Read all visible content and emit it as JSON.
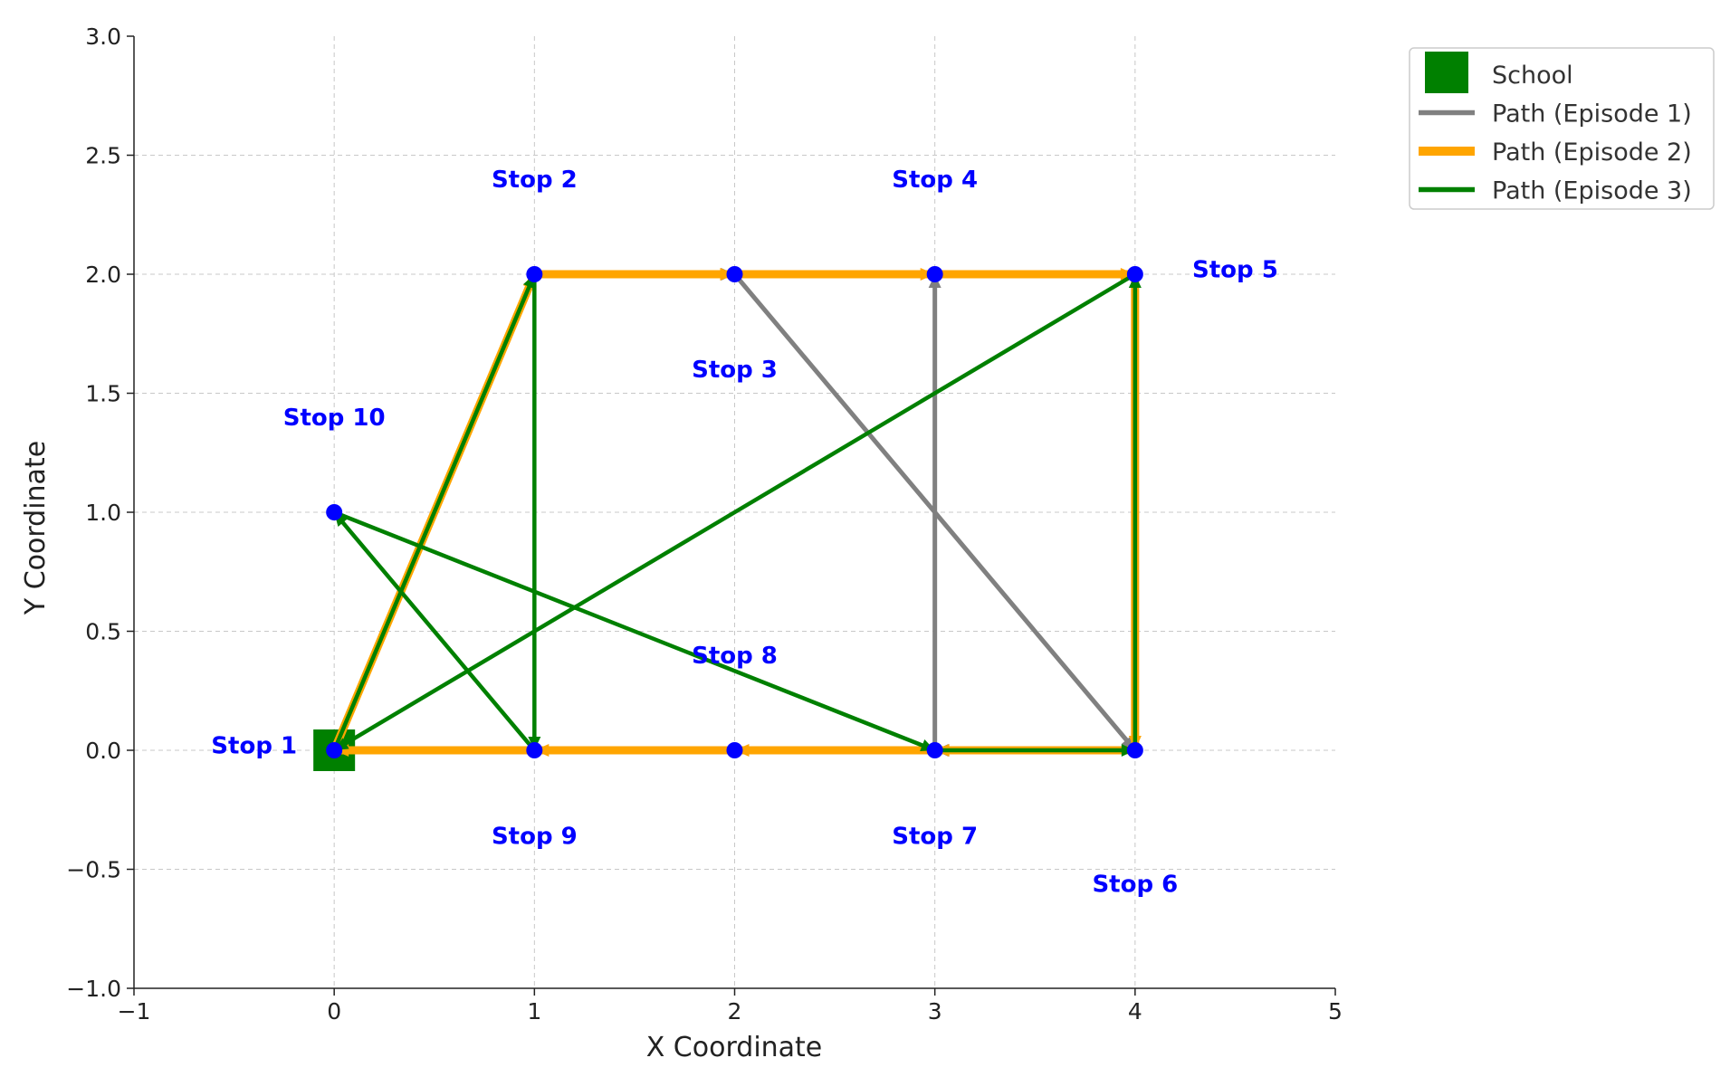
{
  "chart_data": {
    "type": "line",
    "xlabel": "X Coordinate",
    "ylabel": "Y Coordinate",
    "xlim": [
      -1,
      5
    ],
    "ylim": [
      -1.0,
      3.0
    ],
    "xticks": [
      -1,
      0,
      1,
      2,
      3,
      4,
      5
    ],
    "xtick_labels": [
      "−1",
      "0",
      "1",
      "2",
      "3",
      "4",
      "5"
    ],
    "yticks": [
      -1.0,
      -0.5,
      0.0,
      0.5,
      1.0,
      1.5,
      2.0,
      2.5,
      3.0
    ],
    "ytick_labels": [
      "−1.0",
      "−0.5",
      "0.0",
      "0.5",
      "1.0",
      "1.5",
      "2.0",
      "2.5",
      "3.0"
    ],
    "grid": true,
    "legend_position": "outside top-right",
    "school": {
      "name": "School",
      "x": 0,
      "y": 0,
      "color": "#008000"
    },
    "stops": [
      {
        "name": "Stop 1",
        "x": 0,
        "y": 0,
        "label_x": -0.4,
        "label_y": 0.02
      },
      {
        "name": "Stop 2",
        "x": 1,
        "y": 2,
        "label_x": 1.0,
        "label_y": 2.4
      },
      {
        "name": "Stop 3",
        "x": 2,
        "y": 2,
        "label_x": 2.0,
        "label_y": 1.6
      },
      {
        "name": "Stop 4",
        "x": 3,
        "y": 2,
        "label_x": 3.0,
        "label_y": 2.4
      },
      {
        "name": "Stop 5",
        "x": 4,
        "y": 2,
        "label_x": 4.5,
        "label_y": 2.02
      },
      {
        "name": "Stop 6",
        "x": 4,
        "y": 0,
        "label_x": 4.0,
        "label_y": -0.56
      },
      {
        "name": "Stop 7",
        "x": 3,
        "y": 0,
        "label_x": 3.0,
        "label_y": -0.36
      },
      {
        "name": "Stop 8",
        "x": 2,
        "y": 0,
        "label_x": 2.0,
        "label_y": 0.4
      },
      {
        "name": "Stop 9",
        "x": 1,
        "y": 0,
        "label_x": 1.0,
        "label_y": -0.36
      },
      {
        "name": "Stop 10",
        "x": 0,
        "y": 1,
        "label_x": 0.0,
        "label_y": 1.4
      }
    ],
    "stop_marker_color": "#0000ff",
    "stop_label_color": "#0000ff",
    "series": [
      {
        "name": "Path (Episode 1)",
        "color": "#808080",
        "points": [
          [
            0,
            0
          ],
          [
            1,
            2
          ],
          [
            2,
            2
          ],
          [
            4,
            0
          ],
          [
            3,
            0
          ],
          [
            3,
            2
          ]
        ]
      },
      {
        "name": "Path (Episode 2)",
        "color": "#ffa500",
        "points": [
          [
            0,
            0
          ],
          [
            1,
            2
          ],
          [
            2,
            2
          ],
          [
            3,
            2
          ],
          [
            4,
            2
          ],
          [
            4,
            0
          ],
          [
            3,
            0
          ],
          [
            2,
            0
          ],
          [
            1,
            0
          ],
          [
            0,
            0
          ]
        ]
      },
      {
        "name": "Path (Episode 3)",
        "color": "#008000",
        "points": [
          [
            0,
            0
          ],
          [
            1,
            2
          ],
          [
            1,
            0
          ],
          [
            0,
            1
          ],
          [
            3,
            0
          ],
          [
            4,
            0
          ],
          [
            4,
            2
          ],
          [
            0,
            0
          ]
        ]
      }
    ],
    "legend": [
      {
        "label": "School",
        "kind": "square",
        "color": "#008000"
      },
      {
        "label": "Path (Episode 1)",
        "kind": "line",
        "color": "#808080"
      },
      {
        "label": "Path (Episode 2)",
        "kind": "line",
        "color": "#ffa500"
      },
      {
        "label": "Path (Episode 3)",
        "kind": "line",
        "color": "#008000"
      }
    ]
  }
}
